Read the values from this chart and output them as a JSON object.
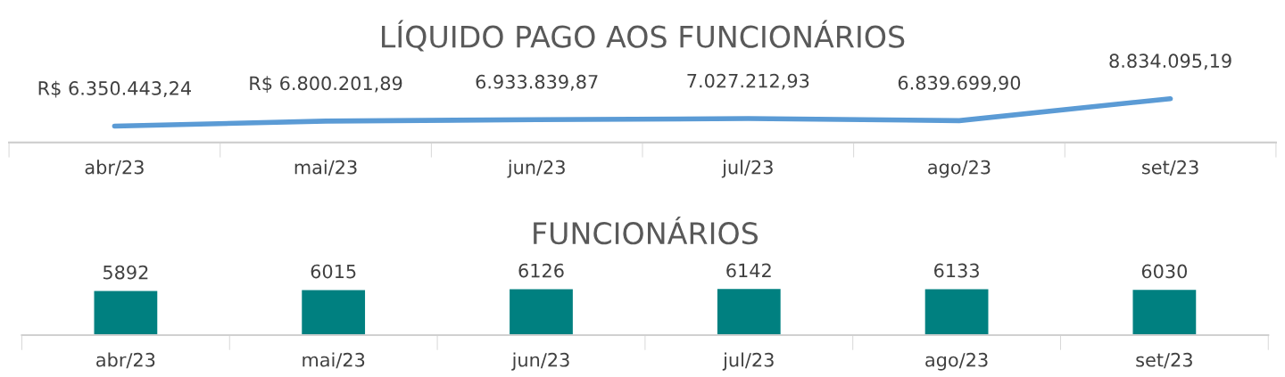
{
  "chart_data": [
    {
      "type": "line",
      "title": "LÍQUIDO PAGO AOS FUNCIONÁRIOS",
      "categories": [
        "abr/23",
        "mai/23",
        "jun/23",
        "jul/23",
        "ago/23",
        "set/23"
      ],
      "series": [
        {
          "color": "#5b9bd5",
          "values": [
            6350443.24,
            6800201.89,
            6933839.87,
            7027212.93,
            6839699.9,
            8834095.19
          ],
          "value_labels": [
            "R$ 6.350.443,24",
            "R$ 6.800.201,89",
            "6.933.839,87",
            "7.027.212,93",
            "6.839.699,90",
            "8.834.095,19"
          ]
        }
      ],
      "tick_labels": "x",
      "grid": false,
      "legend": false,
      "marker": "none"
    },
    {
      "type": "bar",
      "title": "FUNCIONÁRIOS",
      "categories": [
        "abr/23",
        "mai/23",
        "jun/23",
        "jul/23",
        "ago/23",
        "set/23"
      ],
      "series": [
        {
          "color": "#008080",
          "values": [
            5892,
            6015,
            6126,
            6142,
            6133,
            6030
          ]
        }
      ],
      "tick_labels": "x",
      "grid": false,
      "legend": false,
      "data_labels": true
    }
  ]
}
